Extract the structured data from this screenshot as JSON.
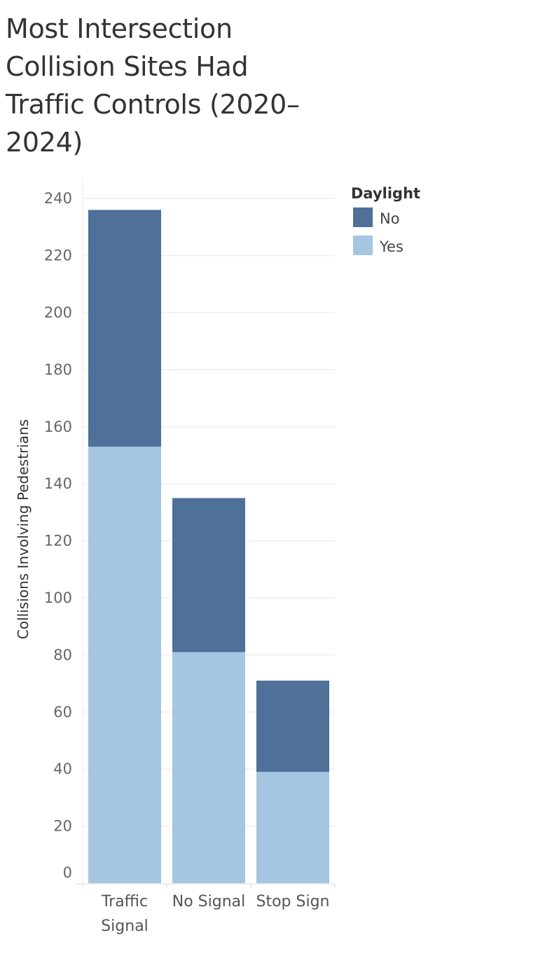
{
  "chart_data": {
    "type": "bar",
    "stacked": true,
    "title": "Most Intersection Collision Sites Had Traffic Controls (2020–2024)",
    "ylabel": "Collisions Involving Pedestrians",
    "xlabel": "",
    "categories": [
      "Traffic Signal",
      "No Signal",
      "Stop Sign"
    ],
    "category_lines": [
      [
        "Traffic",
        "Signal"
      ],
      [
        "No Signal"
      ],
      [
        "Stop Sign"
      ]
    ],
    "series": [
      {
        "name": "Yes",
        "values": [
          153,
          81,
          39
        ],
        "color": "#a5c5e1"
      },
      {
        "name": "No",
        "values": [
          83,
          54,
          32
        ],
        "color": "#4e7099"
      }
    ],
    "ylim": [
      0,
      245
    ],
    "yticks": [
      0,
      20,
      40,
      60,
      80,
      100,
      120,
      140,
      160,
      180,
      200,
      220,
      240
    ],
    "grid": true,
    "legend": {
      "title": "Daylight",
      "placement": "top-right",
      "order": [
        "No",
        "Yes"
      ]
    }
  }
}
